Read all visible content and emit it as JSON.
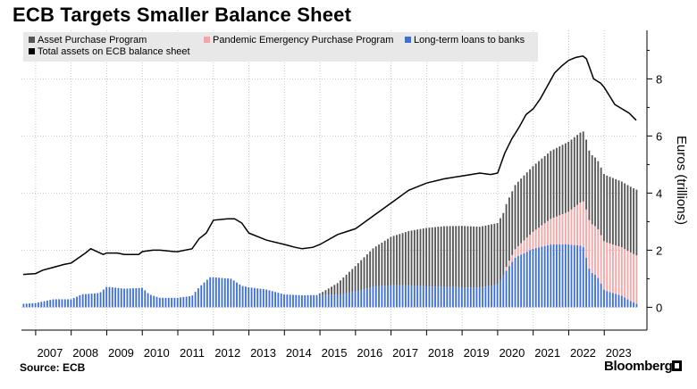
{
  "chart_data": {
    "type": "bar",
    "title": "ECB Targets Smaller Balance Sheet",
    "xlabel": "",
    "ylabel": "Euros (trillions)",
    "ylim": [
      -0.8,
      9.7
    ],
    "yticks": [
      0,
      2,
      4,
      6,
      8
    ],
    "grid": true,
    "axis_side": "right",
    "legend_position": "top-left",
    "x_ticks": [
      "2007",
      "2008",
      "2009",
      "2010",
      "2011",
      "2012",
      "2013",
      "2014",
      "2015",
      "2016",
      "2017",
      "2018",
      "2019",
      "2020",
      "2021",
      "2022",
      "2023"
    ],
    "x_range": [
      2006.6,
      2023.95
    ],
    "series": [
      {
        "name": "Asset Purchase Program",
        "kind": "stacked-bar",
        "color": "#555555",
        "x": [
          2015.0,
          2015.5,
          2016.0,
          2016.5,
          2017.0,
          2017.5,
          2018.0,
          2018.5,
          2019.0,
          2019.5,
          2020.0,
          2020.5,
          2021.0,
          2021.5,
          2022.0,
          2022.5,
          2023.0,
          2023.5
        ],
        "values": [
          0.05,
          0.4,
          0.9,
          1.35,
          1.7,
          1.9,
          2.05,
          2.12,
          2.15,
          2.13,
          2.15,
          2.25,
          2.3,
          2.38,
          2.45,
          2.45,
          2.35,
          2.3
        ]
      },
      {
        "name": "Pandemic Emergency Purchase Program",
        "kind": "stacked-bar",
        "color": "#f4a6a6",
        "x": [
          2020.2,
          2020.5,
          2021.0,
          2021.5,
          2022.0,
          2022.5,
          2023.0,
          2023.5
        ],
        "values": [
          0.1,
          0.3,
          0.6,
          0.9,
          1.15,
          1.7,
          1.7,
          1.7
        ]
      },
      {
        "name": "Long-term loans to banks",
        "kind": "stacked-bar",
        "color": "#3e6fd8",
        "x": [
          2006.65,
          2007.0,
          2007.5,
          2008.0,
          2008.3,
          2008.8,
          2009.0,
          2009.5,
          2010.0,
          2010.2,
          2010.5,
          2011.0,
          2011.4,
          2011.6,
          2011.9,
          2012.0,
          2012.5,
          2012.8,
          2013.0,
          2013.5,
          2014.0,
          2014.5,
          2015.0,
          2015.5,
          2016.0,
          2016.5,
          2017.0,
          2017.5,
          2018.0,
          2018.5,
          2019.0,
          2019.5,
          2020.0,
          2020.3,
          2020.5,
          2021.0,
          2021.5,
          2022.0,
          2022.4,
          2022.6,
          2022.8,
          2023.0,
          2023.5,
          2023.7,
          2023.9
        ],
        "values": [
          0.12,
          0.15,
          0.28,
          0.28,
          0.45,
          0.5,
          0.72,
          0.65,
          0.68,
          0.45,
          0.33,
          0.33,
          0.4,
          0.7,
          1.05,
          1.05,
          1.0,
          0.75,
          0.7,
          0.62,
          0.45,
          0.42,
          0.43,
          0.45,
          0.55,
          0.72,
          0.77,
          0.77,
          0.73,
          0.72,
          0.7,
          0.69,
          0.8,
          1.4,
          1.75,
          2.05,
          2.2,
          2.2,
          2.15,
          1.25,
          1.1,
          0.6,
          0.4,
          0.25,
          0.12
        ]
      },
      {
        "name": "Total assets on ECB balance sheet",
        "kind": "line",
        "color": "#000000",
        "x": [
          2006.65,
          2007.0,
          2007.2,
          2007.5,
          2007.8,
          2008.0,
          2008.4,
          2008.55,
          2008.9,
          2009.0,
          2009.3,
          2009.5,
          2009.9,
          2010.0,
          2010.3,
          2010.5,
          2010.9,
          2011.0,
          2011.4,
          2011.6,
          2011.8,
          2012.0,
          2012.4,
          2012.6,
          2012.8,
          2013.0,
          2013.5,
          2014.0,
          2014.3,
          2014.5,
          2014.8,
          2015.0,
          2015.5,
          2016.0,
          2016.5,
          2017.0,
          2017.5,
          2018.0,
          2018.5,
          2019.0,
          2019.5,
          2019.8,
          2020.0,
          2020.2,
          2020.4,
          2020.6,
          2020.8,
          2021.0,
          2021.2,
          2021.4,
          2021.6,
          2021.8,
          2022.0,
          2022.2,
          2022.4,
          2022.5,
          2022.7,
          2022.9,
          2023.0,
          2023.3,
          2023.5,
          2023.7,
          2023.9
        ],
        "values": [
          1.15,
          1.18,
          1.3,
          1.4,
          1.5,
          1.55,
          1.9,
          2.05,
          1.85,
          1.9,
          1.9,
          1.85,
          1.85,
          1.95,
          2.0,
          2.0,
          1.95,
          1.95,
          2.05,
          2.4,
          2.6,
          3.05,
          3.1,
          3.1,
          2.95,
          2.6,
          2.35,
          2.2,
          2.1,
          2.05,
          2.1,
          2.2,
          2.55,
          2.75,
          3.2,
          3.65,
          4.1,
          4.35,
          4.5,
          4.6,
          4.7,
          4.65,
          4.7,
          5.4,
          5.9,
          6.3,
          6.75,
          6.95,
          7.3,
          7.75,
          8.2,
          8.45,
          8.65,
          8.75,
          8.8,
          8.7,
          8.0,
          7.85,
          7.7,
          7.1,
          6.95,
          6.8,
          6.55
        ]
      }
    ]
  },
  "source": "Source:  ECB",
  "brand": "Bloomberg"
}
